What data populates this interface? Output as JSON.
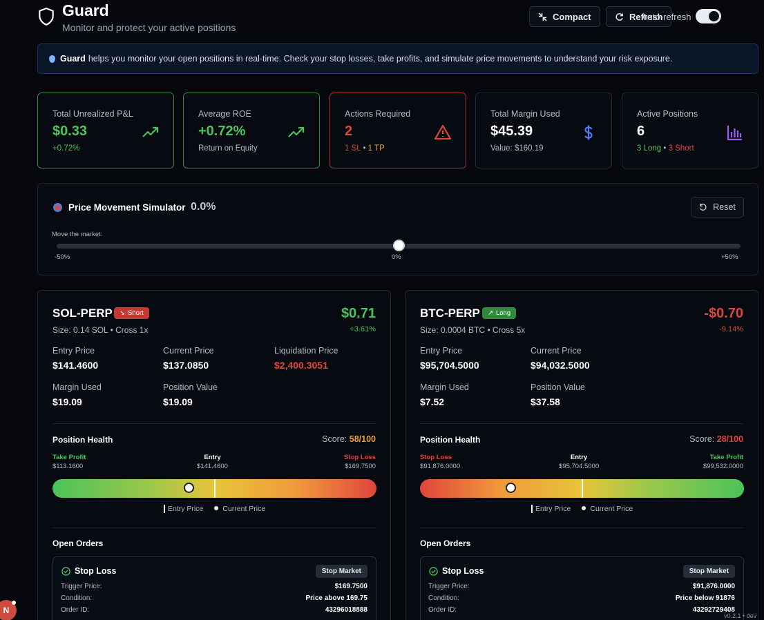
{
  "header": {
    "title": "Guard",
    "subtitle": "Monitor and protect your active positions",
    "compact_label": "Compact",
    "refresh_label": "Refresh",
    "autorefresh_label": "Auto-refresh",
    "autorefresh_on": true
  },
  "banner": {
    "brand": "Guard",
    "text": "helps you monitor your open positions in real-time. Check your stop losses, take profits, and simulate price movements to understand your risk exposure."
  },
  "stats": {
    "pnl": {
      "label": "Total Unrealized P&L",
      "value": "$0.33",
      "sub": "+0.72%"
    },
    "roe": {
      "label": "Average ROE",
      "value": "+0.72%",
      "sub": "Return on Equity"
    },
    "actions": {
      "label": "Actions Required",
      "value": "2",
      "sl": "1 SL",
      "sep": "•",
      "tp": "1 TP"
    },
    "margin": {
      "label": "Total Margin Used",
      "value": "$45.39",
      "sub": "Value: $160.19"
    },
    "active": {
      "label": "Active Positions",
      "value": "6",
      "long": "3 Long",
      "sep": "•",
      "short": "3 Short"
    }
  },
  "simulator": {
    "title": "Price Movement Simulator",
    "value": "0.0%",
    "reset_label": "Reset",
    "move_label": "Move the market:",
    "min_label": "-50%",
    "mid_label": "0%",
    "max_label": "+50%",
    "slider_value_pct": 0
  },
  "positions": [
    {
      "symbol": "SOL-PERP",
      "side": "Short",
      "size": "Size: 0.14 SOL • Cross 1x",
      "pnl": "$0.71",
      "pnl_pct": "+3.61%",
      "entry_label": "Entry Price",
      "entry": "$141.4600",
      "current_label": "Current Price",
      "current": "$137.0850",
      "liq_label": "Liquidation Price",
      "liq": "$2,400.3051",
      "margin_label": "Margin Used",
      "margin": "$19.09",
      "value_label": "Position Value",
      "value": "$19.09",
      "health_label": "Position Health",
      "score_label": "Score:",
      "score": "58/100",
      "score_num": 58,
      "left_label": "Take Profit",
      "left_value": "$113.1600",
      "entry_mark_label": "Entry",
      "entry_mark_value": "$141.4600",
      "right_label": "Stop Loss",
      "right_value": "$169.7500",
      "current_fraction": 0.42,
      "legend_entry": "Entry Price",
      "legend_current": "Current Price",
      "orders_label": "Open Orders",
      "order": {
        "title": "Stop Loss",
        "type": "Stop Market",
        "trigger_label": "Trigger Price:",
        "trigger": "$169.7500",
        "condition_label": "Condition:",
        "condition": "Price above 169.75",
        "id_label": "Order ID:",
        "id": "43296018888"
      }
    },
    {
      "symbol": "BTC-PERP",
      "side": "Long",
      "size": "Size: 0.0004 BTC • Cross 5x",
      "pnl": "-$0.70",
      "pnl_pct": "-9.14%",
      "entry_label": "Entry Price",
      "entry": "$95,704.5000",
      "current_label": "Current Price",
      "current": "$94,032.5000",
      "margin_label": "Margin Used",
      "margin": "$7.52",
      "value_label": "Position Value",
      "value": "$37.58",
      "health_label": "Position Health",
      "score_label": "Score:",
      "score": "28/100",
      "score_num": 28,
      "left_label": "Stop Loss",
      "left_value": "$91,876.0000",
      "entry_mark_label": "Entry",
      "entry_mark_value": "$95,704.5000",
      "right_label": "Take Profit",
      "right_value": "$99,532.0000",
      "current_fraction": 0.28,
      "legend_entry": "Entry Price",
      "legend_current": "Current Price",
      "orders_label": "Open Orders",
      "order": {
        "title": "Stop Loss",
        "type": "Stop Market",
        "trigger_label": "Trigger Price:",
        "trigger": "$91,876.0000",
        "condition_label": "Condition:",
        "condition": "Price below 91876",
        "id_label": "Order ID:",
        "id": "43292729408"
      }
    }
  ],
  "footer": {
    "notification_letter": "N",
    "version": "v0.2.1 • dev"
  }
}
